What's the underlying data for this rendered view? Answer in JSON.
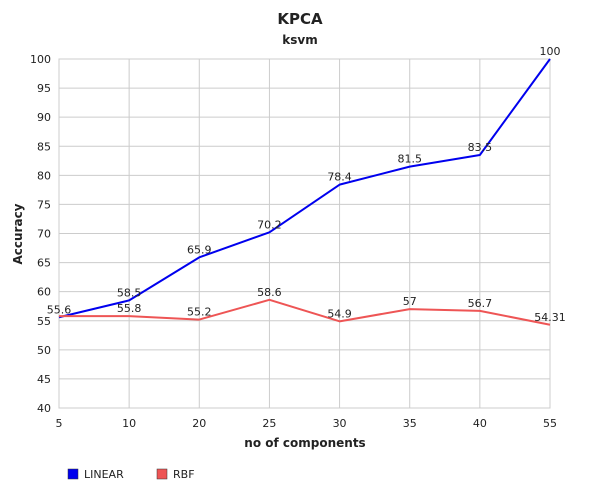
{
  "chart_data": {
    "type": "line",
    "title": "KPCA",
    "subtitle": "ksvm",
    "xlabel": "no of components",
    "ylabel": "Accuracy",
    "x": [
      5,
      10,
      20,
      25,
      30,
      35,
      40,
      55
    ],
    "xticks": [
      "5",
      "10",
      "20",
      "25",
      "30",
      "35",
      "40",
      "55"
    ],
    "yticks": [
      "40",
      "45",
      "50",
      "55",
      "60",
      "65",
      "70",
      "75",
      "80",
      "85",
      "90",
      "95",
      "100"
    ],
    "ylim": [
      40,
      100
    ],
    "grid": true,
    "legend_position": "bottom-left",
    "series": [
      {
        "name": "LINEAR",
        "color": "#0000ee",
        "values": [
          55.6,
          58.5,
          65.9,
          70.2,
          78.4,
          81.5,
          83.5,
          100
        ],
        "labels": [
          "55.6",
          "58.5",
          "65.9",
          "70.2",
          "78.4",
          "81.5",
          "83.5",
          "100"
        ]
      },
      {
        "name": "RBF",
        "color": "#ee5555",
        "values": [
          55.8,
          55.8,
          55.2,
          58.6,
          54.9,
          57,
          56.7,
          54.31
        ],
        "labels": [
          "",
          "55.8",
          "55.2",
          "58.6",
          "54.9",
          "57",
          "56.7",
          "54.31"
        ]
      }
    ]
  }
}
